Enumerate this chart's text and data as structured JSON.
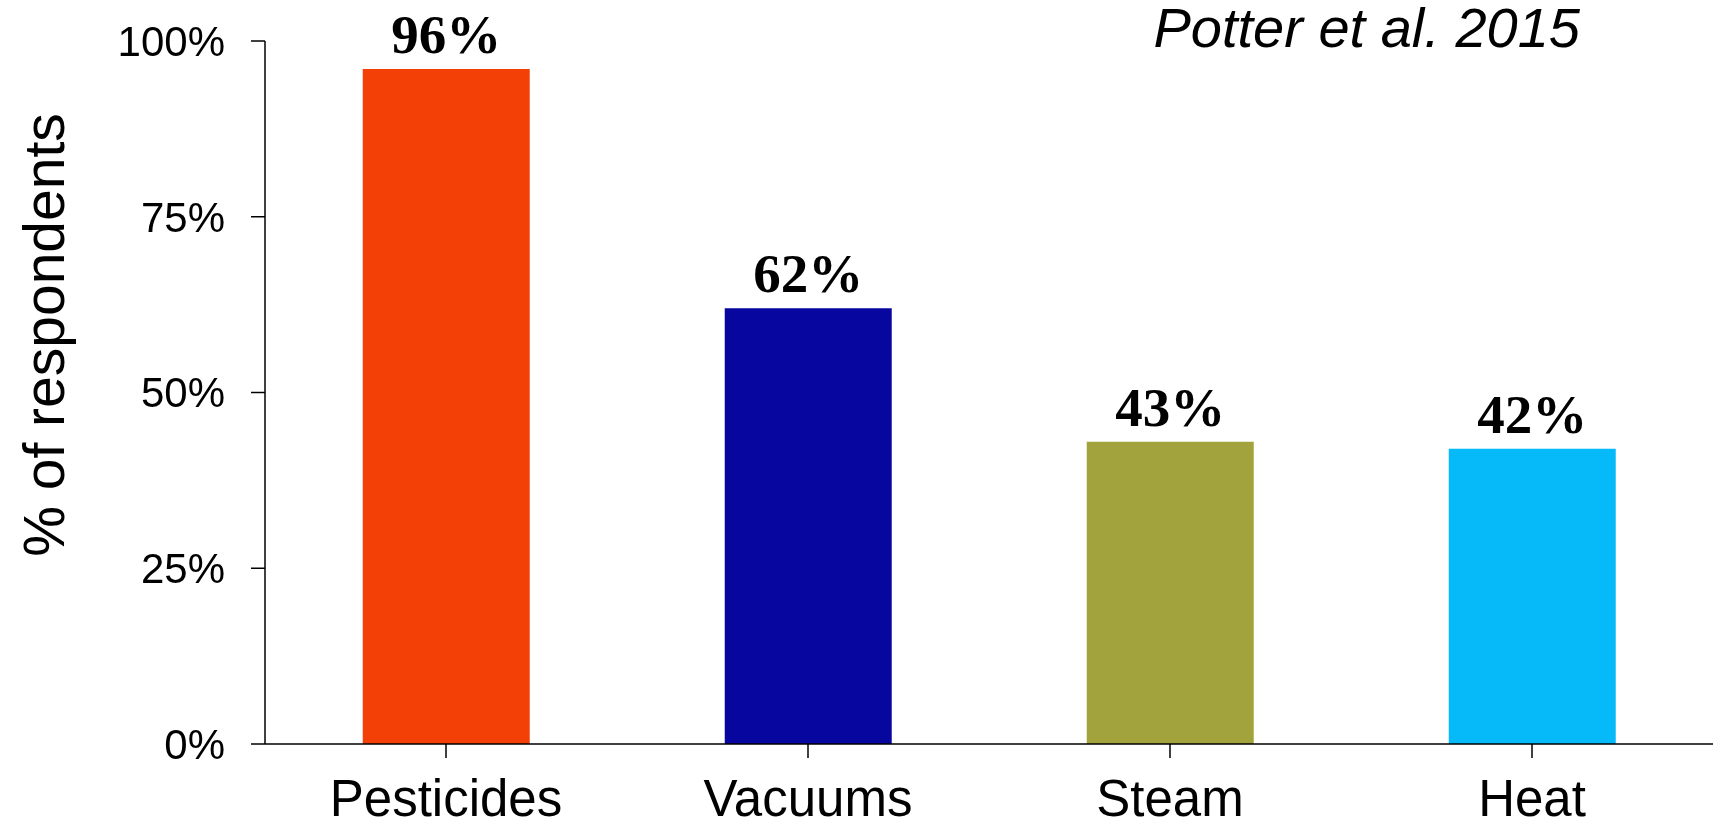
{
  "chart_data": {
    "type": "bar",
    "ylabel": "% of respondents",
    "annotations": [
      "Potter et al. 2015"
    ],
    "categories": [
      "Pesticides",
      "Vacuums",
      "Steam",
      "Heat"
    ],
    "values": [
      96,
      62,
      43,
      42
    ],
    "value_labels": [
      "96%",
      "62%",
      "43%",
      "42%"
    ],
    "colors": [
      "#f24007",
      "#0707a0",
      "#a3a33e",
      "#06b9f9"
    ],
    "ylim": [
      0,
      100
    ],
    "yticks": [
      {
        "value": 0,
        "label": "0%"
      },
      {
        "value": 25,
        "label": "25%"
      },
      {
        "value": 50,
        "label": "50%"
      },
      {
        "value": 75,
        "label": "75%"
      },
      {
        "value": 100,
        "label": "100%"
      }
    ],
    "grid": false,
    "legend": false
  }
}
